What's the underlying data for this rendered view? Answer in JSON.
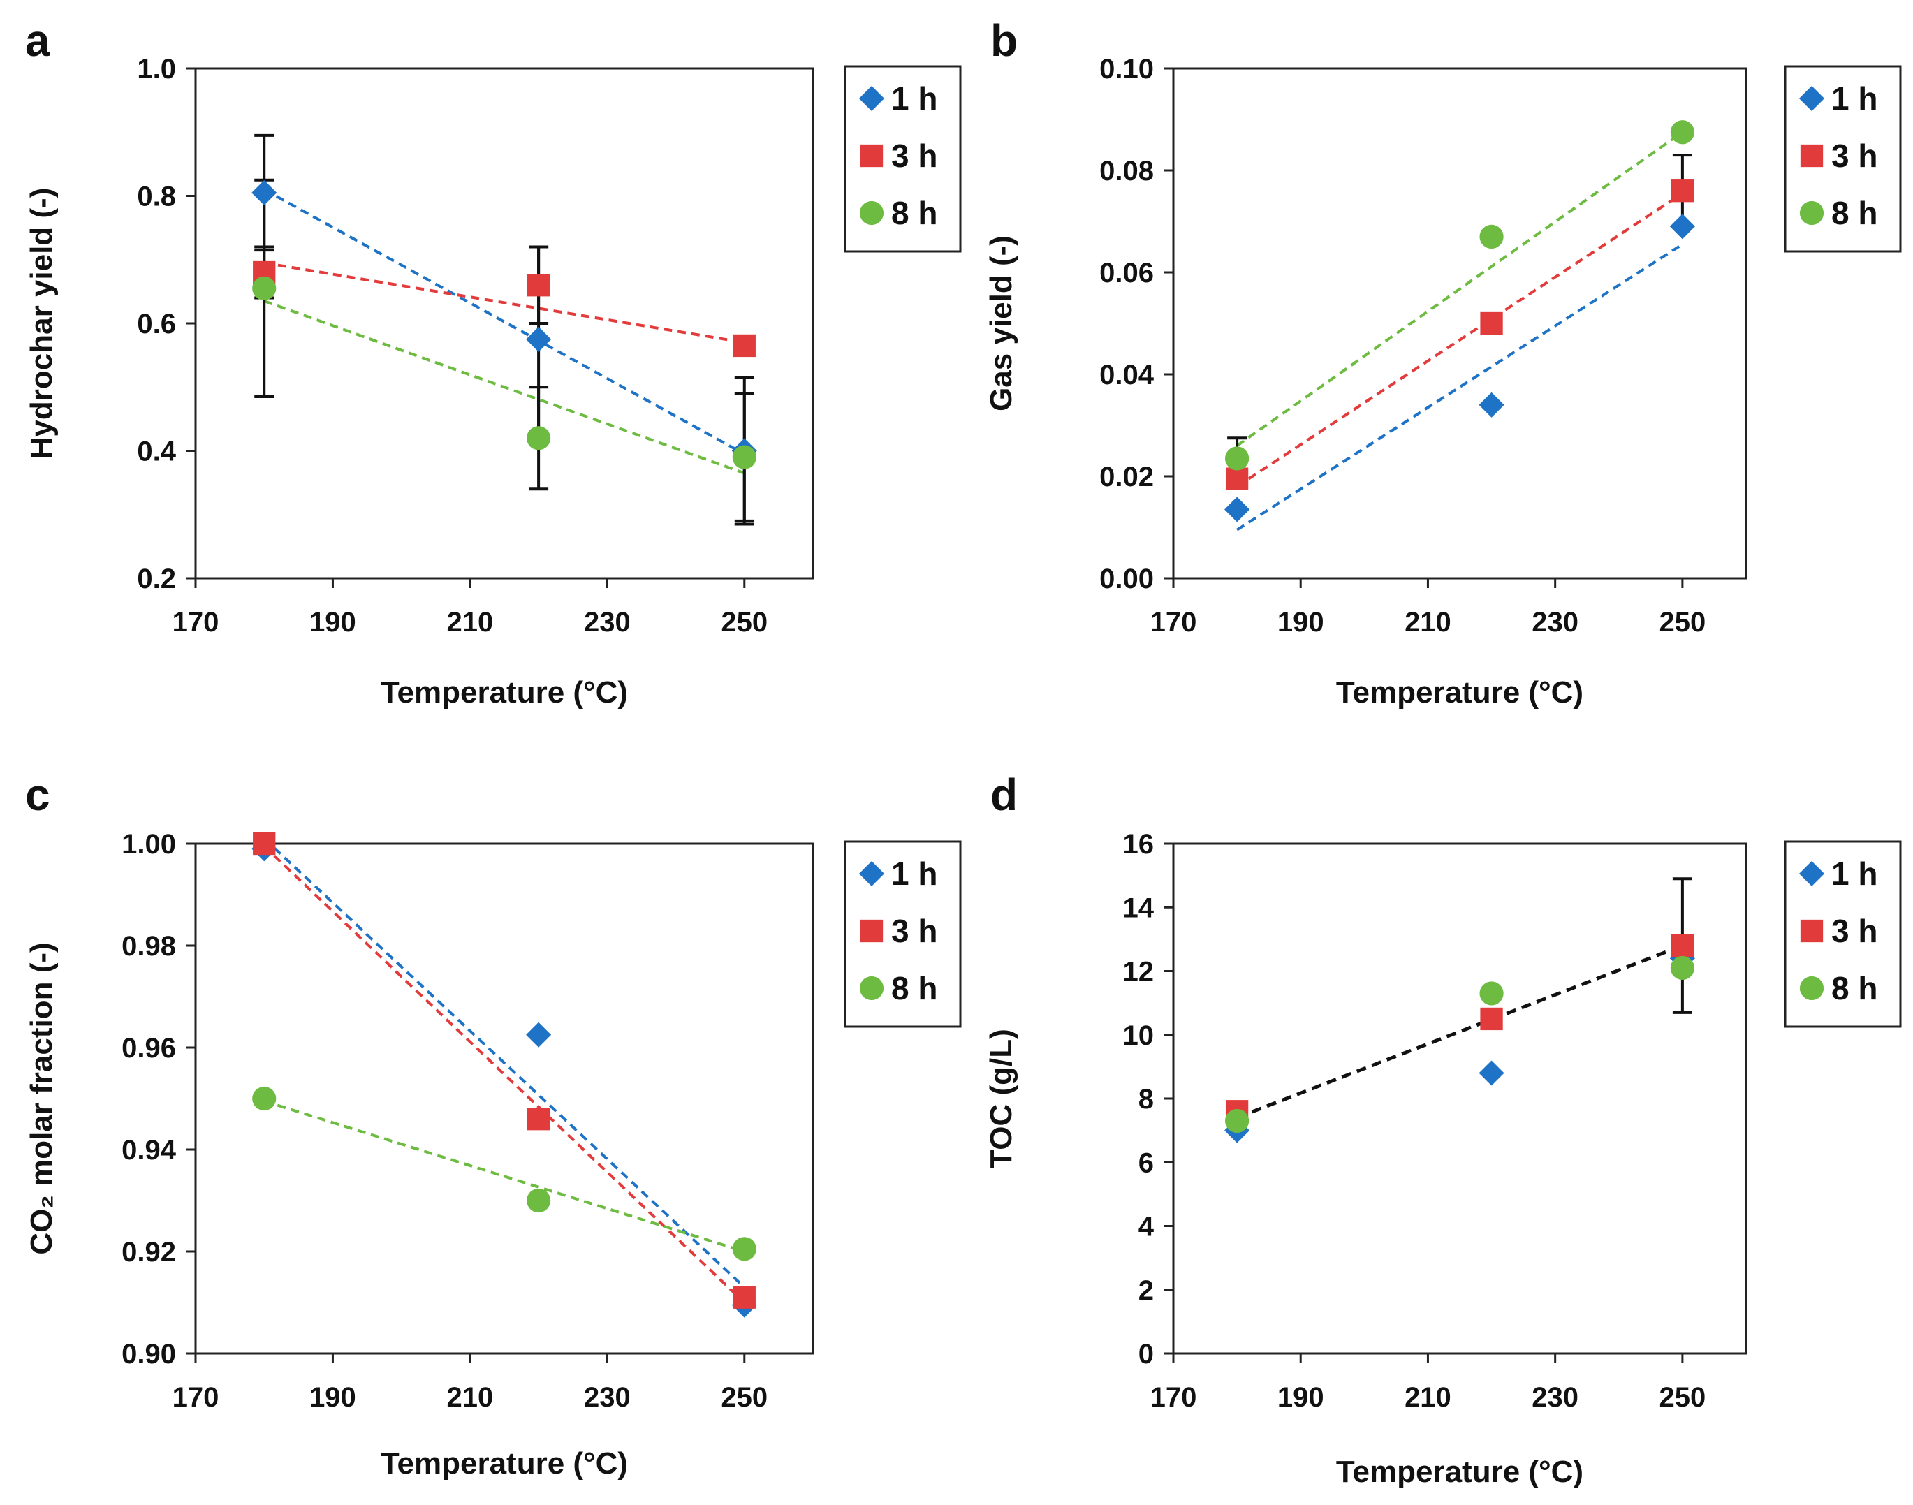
{
  "figure": {
    "colors": {
      "1 h": "#1f73c6",
      "3 h": "#e13b3b",
      "8 h": "#6dbb40",
      "trend_black": "#111111",
      "error_bar": "#111111"
    }
  },
  "chart_data": [
    {
      "panel": "a",
      "type": "scatter",
      "xlabel": "Temperature (°C)",
      "ylabel": "Hydrochar yield (-)",
      "xlim": [
        170,
        260
      ],
      "ylim": [
        0.2,
        1.0
      ],
      "xticks": [
        170,
        190,
        210,
        230,
        250
      ],
      "xtick_labels": [
        "170",
        "190",
        "210",
        "230",
        "250"
      ],
      "yticks": [
        0.2,
        0.4,
        0.6,
        0.8,
        1.0
      ],
      "ytick_labels": [
        "0.2",
        "0.4",
        "0.6",
        "0.8",
        "1.0"
      ],
      "legend": [
        "1 h",
        "3 h",
        "8 h"
      ],
      "series": [
        {
          "name": "1 h",
          "marker": "diamond",
          "x": [
            180,
            220,
            250
          ],
          "y": [
            0.805,
            0.575,
            0.4
          ],
          "err": [
            0.09,
            0.145,
            0.115
          ],
          "trend": [
            [
              180,
              0.81
            ],
            [
              250,
              0.395
            ]
          ]
        },
        {
          "name": "3 h",
          "marker": "square",
          "x": [
            180,
            220,
            250
          ],
          "y": [
            0.68,
            0.66,
            0.565
          ],
          "err": [
            0.04,
            0.06,
            0.0
          ],
          "trend": [
            [
              180,
              0.695
            ],
            [
              250,
              0.57
            ]
          ]
        },
        {
          "name": "8 h",
          "marker": "circle",
          "x": [
            180,
            220,
            250
          ],
          "y": [
            0.655,
            0.42,
            0.39
          ],
          "err": [
            0.17,
            0.08,
            0.1
          ],
          "trend": [
            [
              180,
              0.635
            ],
            [
              250,
              0.365
            ]
          ]
        }
      ]
    },
    {
      "panel": "b",
      "type": "scatter",
      "xlabel": "Temperature (°C)",
      "ylabel": "Gas yield (-)",
      "xlim": [
        170,
        260
      ],
      "ylim": [
        0.0,
        0.1
      ],
      "xticks": [
        170,
        190,
        210,
        230,
        250
      ],
      "xtick_labels": [
        "170",
        "190",
        "210",
        "230",
        "250"
      ],
      "yticks": [
        0.0,
        0.02,
        0.04,
        0.06,
        0.08,
        0.1
      ],
      "ytick_labels": [
        "0.00",
        "0.02",
        "0.04",
        "0.06",
        "0.08",
        "0.10"
      ],
      "legend": [
        "1 h",
        "3 h",
        "8 h"
      ],
      "series": [
        {
          "name": "1 h",
          "marker": "diamond",
          "x": [
            180,
            220,
            250
          ],
          "y": [
            0.0135,
            0.034,
            0.069
          ],
          "err": [
            0,
            0,
            0
          ],
          "trend": [
            [
              180,
              0.0095
            ],
            [
              250,
              0.0655
            ]
          ]
        },
        {
          "name": "3 h",
          "marker": "square",
          "x": [
            180,
            220,
            250
          ],
          "y": [
            0.0195,
            0.05,
            0.076
          ],
          "err": [
            0,
            0,
            0.007
          ],
          "trend": [
            [
              180,
              0.018
            ],
            [
              250,
              0.0755
            ]
          ]
        },
        {
          "name": "8 h",
          "marker": "circle",
          "x": [
            180,
            220,
            250
          ],
          "y": [
            0.0235,
            0.067,
            0.0875
          ],
          "err": [
            0.004,
            0,
            0
          ],
          "trend": [
            [
              180,
              0.026
            ],
            [
              250,
              0.0875
            ]
          ]
        }
      ]
    },
    {
      "panel": "c",
      "type": "scatter",
      "xlabel": "Temperature (°C)",
      "ylabel": "CO₂ molar fraction (-)",
      "xlim": [
        170,
        260
      ],
      "ylim": [
        0.9,
        1.0
      ],
      "xticks": [
        170,
        190,
        210,
        230,
        250
      ],
      "xtick_labels": [
        "170",
        "190",
        "210",
        "230",
        "250"
      ],
      "yticks": [
        0.9,
        0.92,
        0.94,
        0.96,
        0.98,
        1.0
      ],
      "ytick_labels": [
        "0.90",
        "0.92",
        "0.94",
        "0.96",
        "0.98",
        "1.00"
      ],
      "legend": [
        "1 h",
        "3 h",
        "8 h"
      ],
      "series": [
        {
          "name": "1 h",
          "marker": "diamond",
          "x": [
            180,
            220,
            250
          ],
          "y": [
            0.999,
            0.9625,
            0.9095
          ],
          "err": [
            0,
            0,
            0
          ],
          "trend": [
            [
              180,
              1.001
            ],
            [
              250,
              0.913
            ]
          ]
        },
        {
          "name": "3 h",
          "marker": "square",
          "x": [
            180,
            220,
            250
          ],
          "y": [
            1.0,
            0.946,
            0.911
          ],
          "err": [
            0,
            0,
            0
          ],
          "trend": [
            [
              180,
              0.9995
            ],
            [
              250,
              0.91
            ]
          ]
        },
        {
          "name": "8 h",
          "marker": "circle",
          "x": [
            180,
            220,
            250
          ],
          "y": [
            0.95,
            0.93,
            0.9205
          ],
          "err": [
            0,
            0,
            0
          ],
          "trend": [
            [
              180,
              0.9495
            ],
            [
              250,
              0.92
            ]
          ]
        }
      ]
    },
    {
      "panel": "d",
      "type": "scatter",
      "xlabel": "Temperature (°C)",
      "ylabel": "TOC (g/L)",
      "xlim": [
        170,
        260
      ],
      "ylim": [
        0,
        16
      ],
      "xticks": [
        170,
        190,
        210,
        230,
        250
      ],
      "xtick_labels": [
        "170",
        "190",
        "210",
        "230",
        "250"
      ],
      "yticks": [
        0,
        2,
        4,
        6,
        8,
        10,
        12,
        14,
        16
      ],
      "ytick_labels": [
        "0",
        "2",
        "4",
        "6",
        "8",
        "10",
        "12",
        "14",
        "16"
      ],
      "legend": [
        "1 h",
        "3 h",
        "8 h"
      ],
      "black_trend": [
        [
          180,
          7.4
        ],
        [
          250,
          12.8
        ]
      ],
      "series": [
        {
          "name": "1 h",
          "marker": "diamond",
          "x": [
            180,
            220,
            250
          ],
          "y": [
            7.0,
            8.8,
            12.4
          ],
          "err": [
            0,
            0,
            0
          ],
          "trend": null
        },
        {
          "name": "3 h",
          "marker": "square",
          "x": [
            180,
            220,
            250
          ],
          "y": [
            7.6,
            10.5,
            12.8
          ],
          "err": [
            0,
            0,
            2.1
          ],
          "trend": null
        },
        {
          "name": "8 h",
          "marker": "circle",
          "x": [
            180,
            220,
            250
          ],
          "y": [
            7.3,
            11.3,
            12.1
          ],
          "err": [
            0,
            0,
            0
          ],
          "trend": null
        }
      ]
    }
  ]
}
